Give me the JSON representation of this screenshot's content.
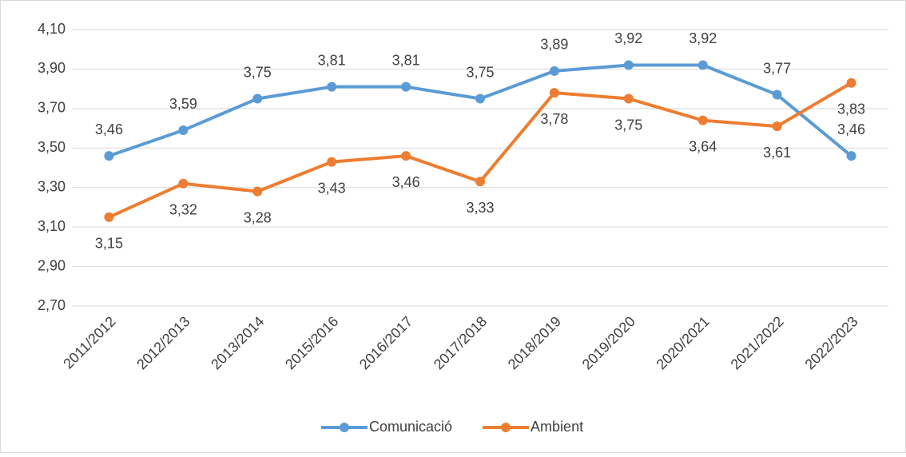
{
  "chart_data": {
    "type": "line",
    "categories": [
      "2011/2012",
      "2012/2013",
      "2013/2014",
      "2015/2016",
      "2016/2017",
      "2017/2018",
      "2018/2019",
      "2019/2020",
      "2020/2021",
      "2021/2022",
      "2022/2023"
    ],
    "series": [
      {
        "name": "Comunicació",
        "color": "#5b9bd5",
        "values": [
          3.46,
          3.59,
          3.75,
          3.81,
          3.81,
          3.75,
          3.89,
          3.92,
          3.92,
          3.77,
          3.46
        ],
        "value_labels": [
          "3,46",
          "3,59",
          "3,75",
          "3,81",
          "3,81",
          "3,75",
          "3,89",
          "3,92",
          "3,92",
          "3,77",
          "3,46"
        ]
      },
      {
        "name": "Ambient",
        "color": "#ed7d31",
        "values": [
          3.15,
          3.32,
          3.28,
          3.43,
          3.46,
          3.33,
          3.78,
          3.75,
          3.64,
          3.61,
          3.83
        ],
        "value_labels": [
          "3,15",
          "3,32",
          "3,28",
          "3,43",
          "3,46",
          "3,33",
          "3,78",
          "3,75",
          "3,64",
          "3,61",
          "3,83"
        ]
      }
    ],
    "ylim": [
      2.7,
      4.1
    ],
    "yticks": [
      {
        "value": 2.7,
        "label": "2,70"
      },
      {
        "value": 2.9,
        "label": "2,90"
      },
      {
        "value": 3.1,
        "label": "3,10"
      },
      {
        "value": 3.3,
        "label": "3,30"
      },
      {
        "value": 3.5,
        "label": "3,50"
      },
      {
        "value": 3.7,
        "label": "3,70"
      },
      {
        "value": 3.9,
        "label": "3,90"
      },
      {
        "value": 4.1,
        "label": "4,10"
      }
    ],
    "grid": true,
    "legend": "bottom"
  }
}
